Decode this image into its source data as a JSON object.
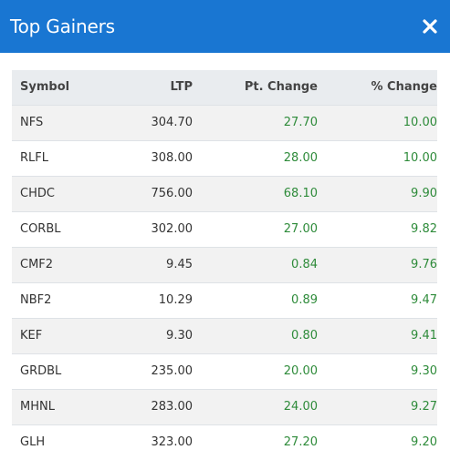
{
  "header": {
    "title": "Top Gainers",
    "close_icon": "close-icon"
  },
  "table": {
    "columns": [
      "Symbol",
      "LTP",
      "Pt. Change",
      "% Change"
    ],
    "rows": [
      {
        "symbol": "NFS",
        "ltp": "304.70",
        "pt_change": "27.70",
        "pct_change": "10.00"
      },
      {
        "symbol": "RLFL",
        "ltp": "308.00",
        "pt_change": "28.00",
        "pct_change": "10.00"
      },
      {
        "symbol": "CHDC",
        "ltp": "756.00",
        "pt_change": "68.10",
        "pct_change": "9.90"
      },
      {
        "symbol": "CORBL",
        "ltp": "302.00",
        "pt_change": "27.00",
        "pct_change": "9.82"
      },
      {
        "symbol": "CMF2",
        "ltp": "9.45",
        "pt_change": "0.84",
        "pct_change": "9.76"
      },
      {
        "symbol": "NBF2",
        "ltp": "10.29",
        "pt_change": "0.89",
        "pct_change": "9.47"
      },
      {
        "symbol": "KEF",
        "ltp": "9.30",
        "pt_change": "0.80",
        "pct_change": "9.41"
      },
      {
        "symbol": "GRDBL",
        "ltp": "235.00",
        "pt_change": "20.00",
        "pct_change": "9.30"
      },
      {
        "symbol": "MHNL",
        "ltp": "283.00",
        "pt_change": "24.00",
        "pct_change": "9.27"
      },
      {
        "symbol": "GLH",
        "ltp": "323.00",
        "pt_change": "27.20",
        "pct_change": "9.20"
      }
    ]
  },
  "colors": {
    "header_bg": "#1976d2",
    "gain_text": "#2e8b3a",
    "table_header_bg": "#e9ecef",
    "row_alt_bg": "#f2f2f2"
  }
}
